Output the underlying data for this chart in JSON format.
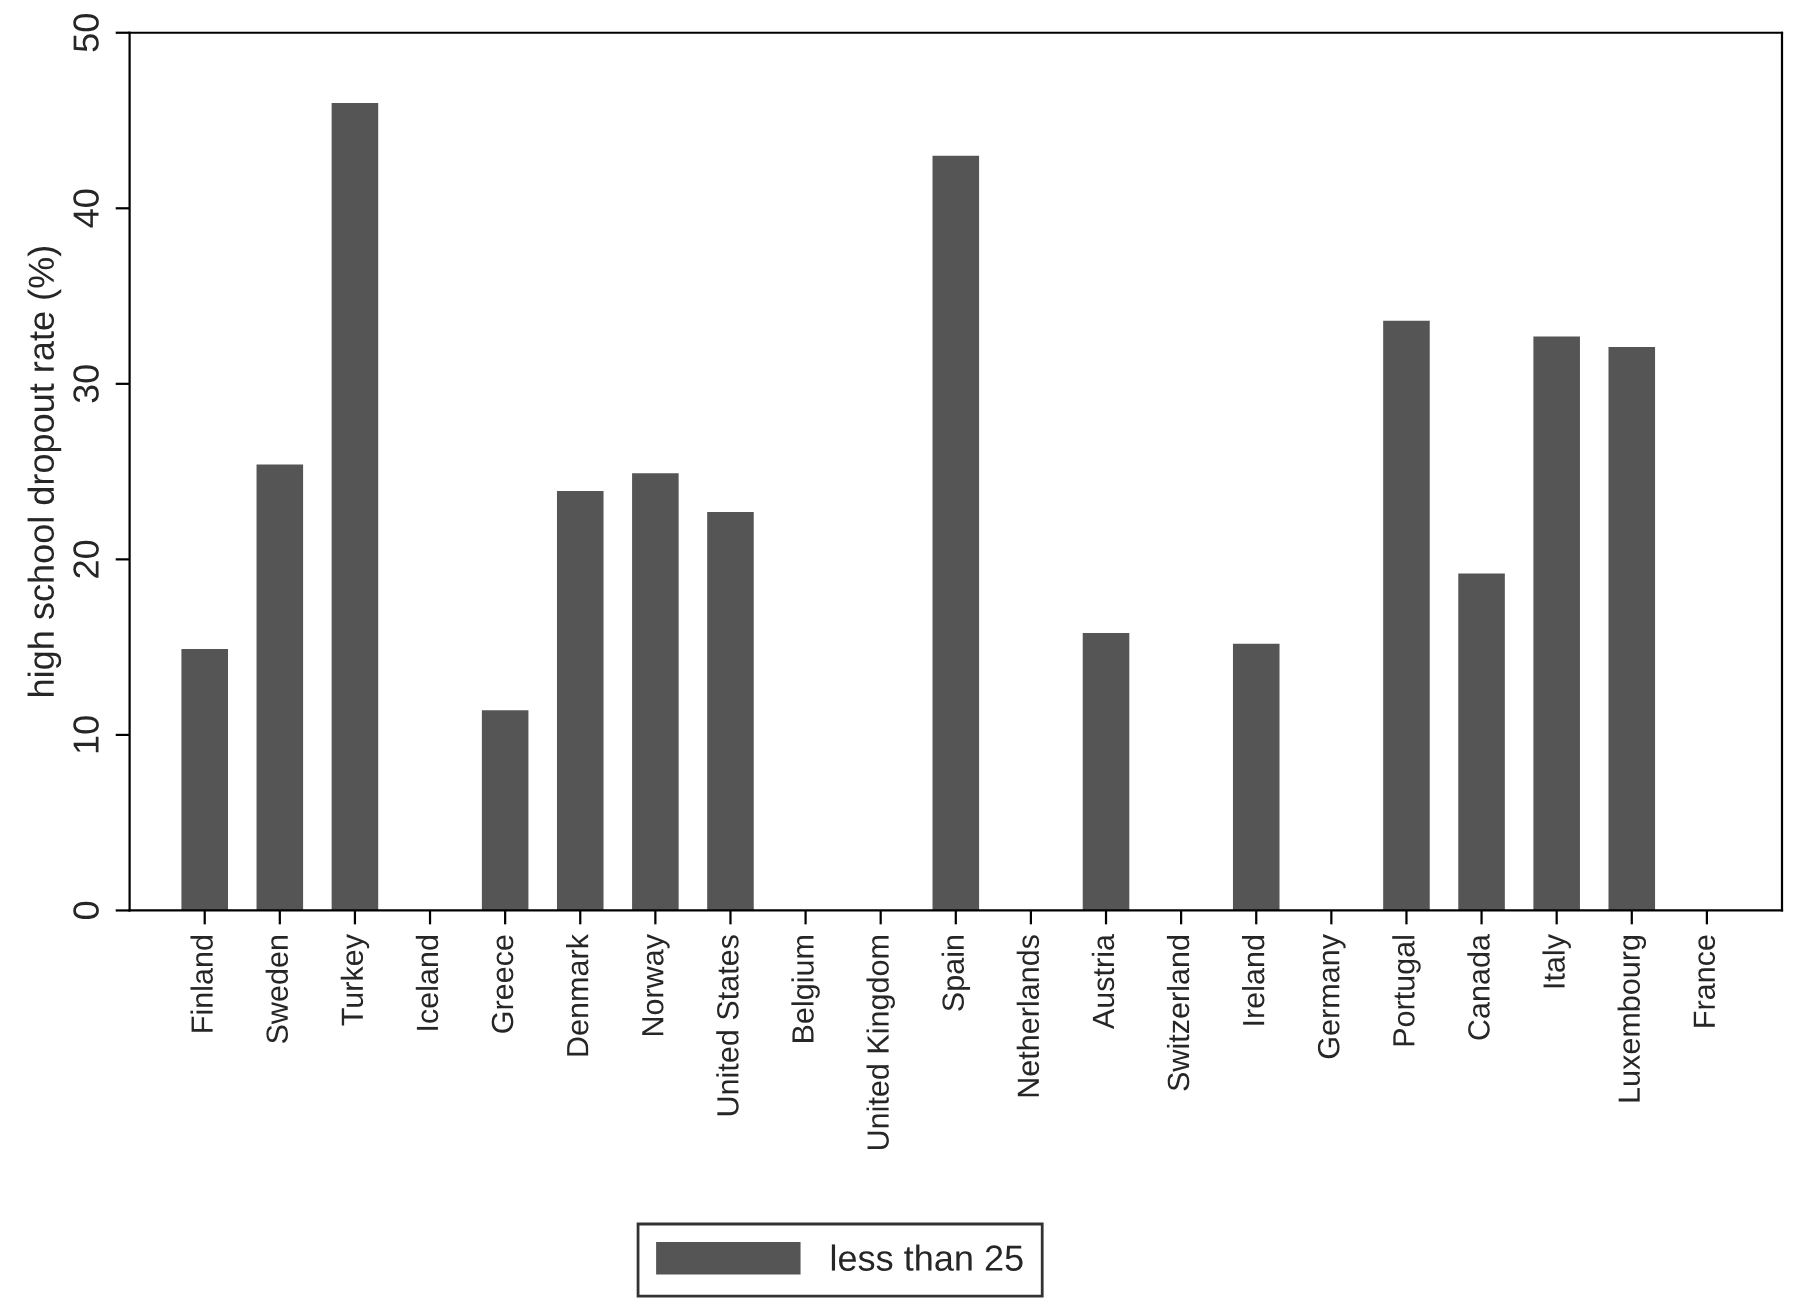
{
  "chart_data": {
    "type": "bar",
    "ylabel": "high school dropout rate (%)",
    "categories": [
      "Finland",
      "Sweden",
      "Turkey",
      "Iceland",
      "Greece",
      "Denmark",
      "Norway",
      "United States",
      "Belgium",
      "United Kingdom",
      "Spain",
      "Netherlands",
      "Austria",
      "Switzerland",
      "Ireland",
      "Germany",
      "Portugal",
      "Canada",
      "Italy",
      "Luxembourg",
      "France"
    ],
    "series": [
      {
        "name": "less than 25",
        "color": "#555555",
        "values": [
          14.9,
          25.4,
          46.0,
          null,
          11.4,
          23.9,
          24.9,
          22.7,
          null,
          null,
          43.0,
          null,
          15.8,
          null,
          15.2,
          null,
          33.6,
          19.2,
          32.7,
          32.1,
          null
        ]
      }
    ],
    "ylim": [
      0,
      50
    ],
    "yticks": [
      0,
      10,
      20,
      30,
      40,
      50
    ],
    "grid": false,
    "legend": "bottom"
  }
}
